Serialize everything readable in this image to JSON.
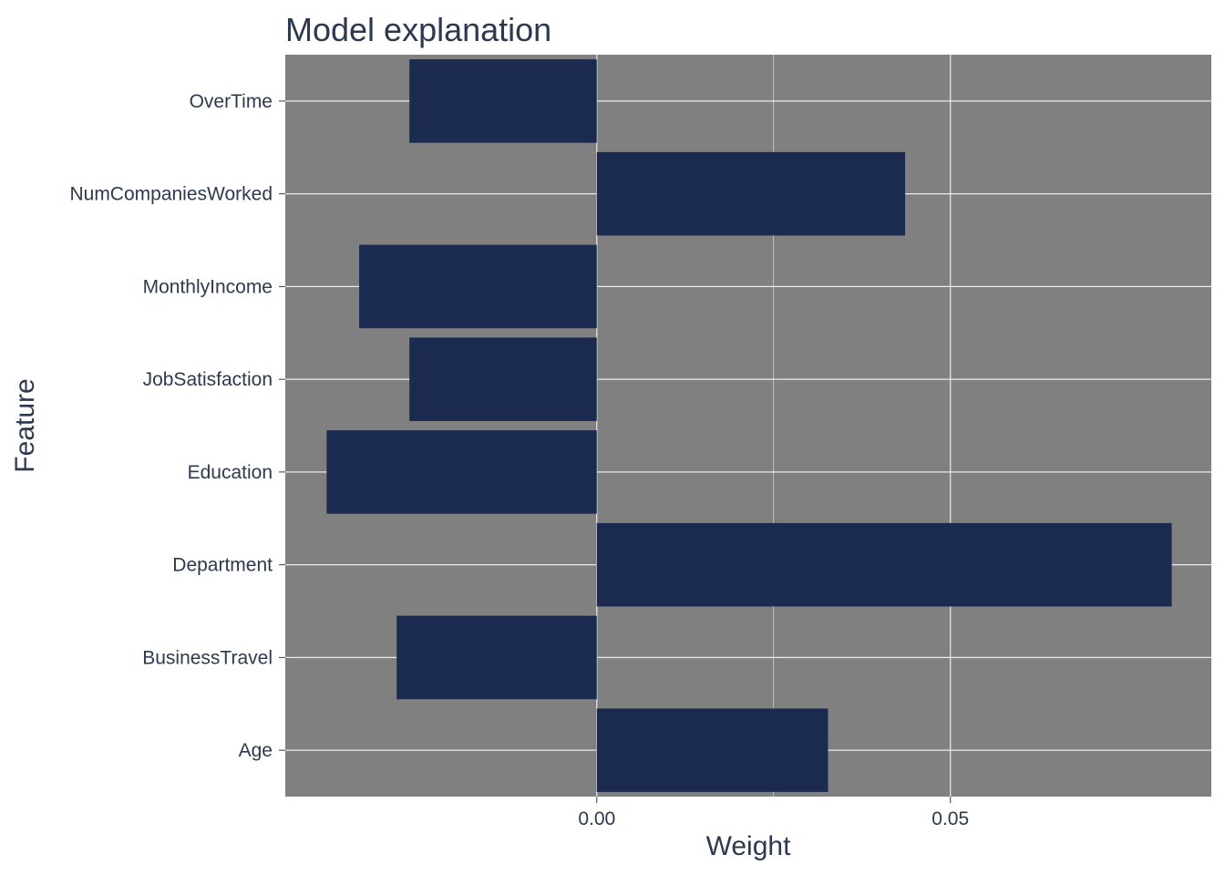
{
  "chart_data": {
    "type": "bar",
    "orientation": "horizontal",
    "title": "Model explanation",
    "xlabel": "Weight",
    "ylabel": "Feature",
    "categories": [
      "OverTime",
      "NumCompaniesWorked",
      "MonthlyIncome",
      "JobSatisfaction",
      "Education",
      "Department",
      "BusinessTravel",
      "Age"
    ],
    "values": [
      -0.0265,
      0.0436,
      -0.0336,
      -0.0265,
      -0.0382,
      0.0813,
      -0.0283,
      0.0327
    ],
    "x_ticks": [
      0.0,
      0.05
    ],
    "x_tick_labels": [
      "0.00",
      "0.05"
    ],
    "xlim": [
      -0.04405,
      0.0869
    ],
    "grid": true,
    "legend": "none",
    "colors": {
      "bar": "#1b2b50",
      "panel_background": "#808080",
      "grid": "#ebebeb",
      "text": "#2b3a4f"
    }
  }
}
